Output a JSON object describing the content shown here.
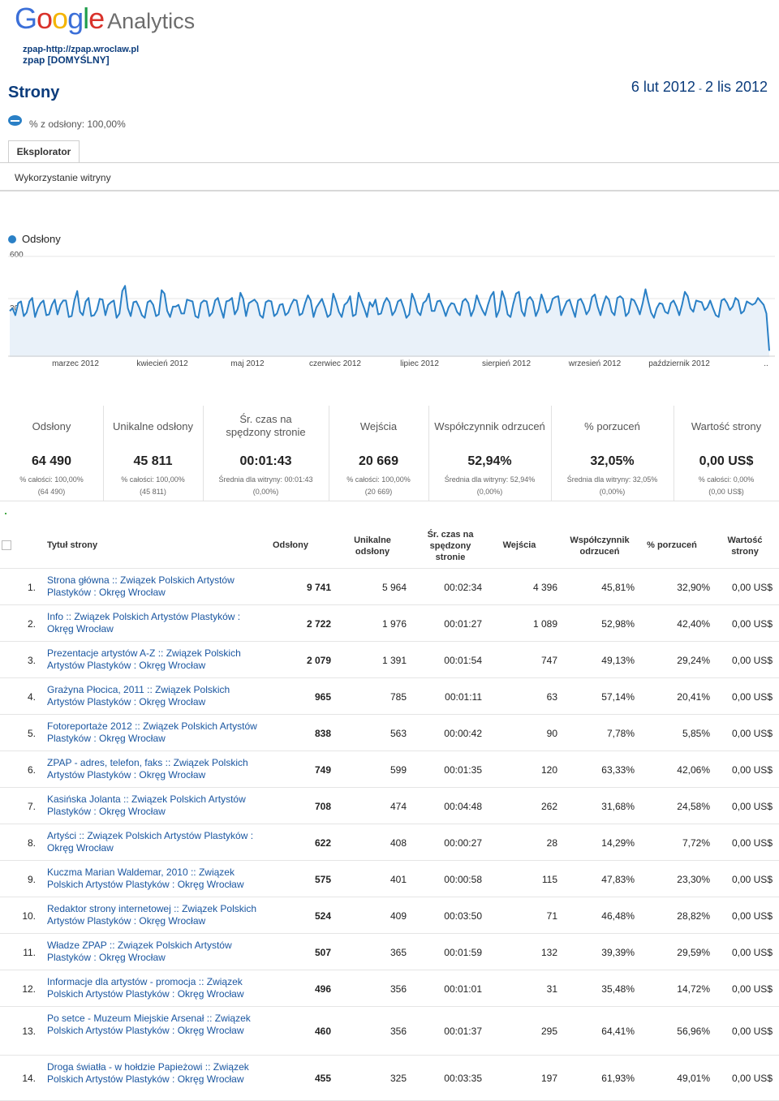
{
  "header": {
    "logo_google": "Google",
    "logo_analytics": "Analytics",
    "account_line1": "zpap-http://zpap.wroclaw.pl",
    "account_line2": "zpap [DOMYŚLNY]",
    "page_title": "Strony",
    "date_start": "6 lut 2012",
    "date_sep": "-",
    "date_end": "2 lis 2012",
    "segment_text": "% z odsłony: 100,00%"
  },
  "tabs": {
    "explorer": "Eksplorator",
    "subtab": "Wykorzystanie witryny"
  },
  "chart_data": {
    "type": "line",
    "series": [
      {
        "name": "Odsłony",
        "color": "#2a80c6",
        "values": [
          285,
          300,
          260,
          330,
          340,
          255,
          275,
          340,
          360,
          250,
          300,
          330,
          345,
          260,
          265,
          320,
          350,
          265,
          320,
          345,
          345,
          250,
          255,
          345,
          400,
          280,
          260,
          340,
          360,
          255,
          260,
          290,
          355,
          350,
          260,
          320,
          335,
          345,
          245,
          270,
          400,
          430,
          300,
          255,
          335,
          340,
          305,
          260,
          245,
          335,
          345,
          320,
          255,
          265,
          405,
          385,
          285,
          250,
          310,
          310,
          320,
          270,
          270,
          350,
          345,
          340,
          255,
          245,
          330,
          345,
          340,
          255,
          275,
          345,
          360,
          300,
          245,
          340,
          345,
          360,
          265,
          295,
          390,
          355,
          255,
          330,
          340,
          350,
          330,
          260,
          245,
          335,
          345,
          340,
          255,
          270,
          320,
          325,
          260,
          275,
          320,
          350,
          345,
          260,
          270,
          330,
          375,
          345,
          250,
          305,
          330,
          355,
          305,
          250,
          265,
          385,
          340,
          280,
          250,
          320,
          335,
          370,
          255,
          265,
          390,
          345,
          300,
          250,
          335,
          310,
          350,
          265,
          270,
          330,
          360,
          335,
          260,
          285,
          340,
          350,
          305,
          245,
          265,
          385,
          345,
          280,
          260,
          330,
          345,
          385,
          285,
          285,
          340,
          345,
          305,
          255,
          305,
          330,
          325,
          280,
          260,
          340,
          355,
          330,
          255,
          295,
          375,
          330,
          290,
          260,
          320,
          370,
          395,
          250,
          290,
          400,
          355,
          265,
          250,
          325,
          385,
          395,
          285,
          255,
          350,
          365,
          340,
          255,
          295,
          380,
          335,
          275,
          295,
          355,
          365,
          370,
          260,
          300,
          340,
          350,
          300,
          250,
          345,
          355,
          320,
          265,
          290,
          365,
          380,
          310,
          260,
          325,
          370,
          350,
          280,
          260,
          360,
          370,
          355,
          255,
          275,
          355,
          345,
          310,
          265,
          330,
          410,
          340,
          275,
          245,
          300,
          330,
          325,
          280,
          270,
          330,
          345,
          310,
          260,
          320,
          395,
          370,
          300,
          280,
          345,
          340,
          335,
          290,
          305,
          345,
          300,
          260,
          250,
          345,
          355,
          330,
          290,
          310,
          360,
          345,
          270,
          285,
          340,
          330,
          320,
          330,
          360,
          340,
          320,
          270,
          55
        ]
      }
    ],
    "ylim": [
      0,
      600
    ],
    "yticks": [
      "600",
      "300"
    ],
    "xlabels": [
      "marzec 2012",
      "kwiecień 2012",
      "maj 2012",
      "czerwiec 2012",
      "lipiec 2012",
      "sierpień 2012",
      "wrzesień 2012",
      "październik 2012",
      ".."
    ]
  },
  "summary": [
    {
      "label": "Odsłony",
      "value": "64 490",
      "sub1": "% całości: 100,00%",
      "sub2": "(64 490)"
    },
    {
      "label": "Unikalne odsłony",
      "value": "45 811",
      "sub1": "% całości: 100,00%",
      "sub2": "(45 811)"
    },
    {
      "label": "Śr. czas na spędzony stronie",
      "value": "00:01:43",
      "sub1": "Średnia dla witryny: 00:01:43",
      "sub2": "(0,00%)"
    },
    {
      "label": "Wejścia",
      "value": "20 669",
      "sub1": "% całości: 100,00%",
      "sub2": "(20 669)"
    },
    {
      "label": "Współczynnik odrzuceń",
      "value": "52,94%",
      "sub1": "Średnia dla witryny: 52,94%",
      "sub2": "(0,00%)"
    },
    {
      "label": "% porzuceń",
      "value": "32,05%",
      "sub1": "Średnia dla witryny: 32,05%",
      "sub2": "(0,00%)"
    },
    {
      "label": "Wartość strony",
      "value": "0,00 US$",
      "sub1": "% całości: 0,00%",
      "sub2": "(0,00 US$)"
    }
  ],
  "table": {
    "headers": {
      "title": "Tytuł strony",
      "pageviews": "Odsłony",
      "unique": "Unikalne odsłony",
      "avg_time": "Śr. czas na spędzony stronie",
      "entrances": "Wejścia",
      "bounce": "Współczynnik odrzuceń",
      "exit": "% porzuceń",
      "value": "Wartość strony"
    },
    "rows": [
      {
        "idx": "1.",
        "title": "Strona główna :: Związek Polskich Artystów Plastyków : Okręg Wrocław",
        "pageviews": "9 741",
        "unique": "5 964",
        "avg_time": "00:02:34",
        "entrances": "4 396",
        "bounce": "45,81%",
        "exit": "32,90%",
        "value": "0,00 US$"
      },
      {
        "idx": "2.",
        "title": "Info :: Związek Polskich Artystów Plastyków : Okręg Wrocław",
        "pageviews": "2 722",
        "unique": "1 976",
        "avg_time": "00:01:27",
        "entrances": "1 089",
        "bounce": "52,98%",
        "exit": "42,40%",
        "value": "0,00 US$"
      },
      {
        "idx": "3.",
        "title": "Prezentacje artystów A-Z :: Związek Polskich Artystów Plastyków : Okręg Wrocław",
        "pageviews": "2 079",
        "unique": "1 391",
        "avg_time": "00:01:54",
        "entrances": "747",
        "bounce": "49,13%",
        "exit": "29,24%",
        "value": "0,00 US$"
      },
      {
        "idx": "4.",
        "title": "Grażyna Płocica, 2011 :: Związek Polskich Artystów Plastyków : Okręg Wrocław",
        "pageviews": "965",
        "unique": "785",
        "avg_time": "00:01:11",
        "entrances": "63",
        "bounce": "57,14%",
        "exit": "20,41%",
        "value": "0,00 US$"
      },
      {
        "idx": "5.",
        "title": "Fotoreportaże 2012 :: Związek Polskich Artystów Plastyków : Okręg Wrocław",
        "pageviews": "838",
        "unique": "563",
        "avg_time": "00:00:42",
        "entrances": "90",
        "bounce": "7,78%",
        "exit": "5,85%",
        "value": "0,00 US$"
      },
      {
        "idx": "6.",
        "title": "ZPAP - adres, telefon, faks :: Związek Polskich Artystów Plastyków : Okręg Wrocław",
        "pageviews": "749",
        "unique": "599",
        "avg_time": "00:01:35",
        "entrances": "120",
        "bounce": "63,33%",
        "exit": "42,06%",
        "value": "0,00 US$"
      },
      {
        "idx": "7.",
        "title": "Kasińska Jolanta :: Związek Polskich Artystów Plastyków : Okręg Wrocław",
        "pageviews": "708",
        "unique": "474",
        "avg_time": "00:04:48",
        "entrances": "262",
        "bounce": "31,68%",
        "exit": "24,58%",
        "value": "0,00 US$"
      },
      {
        "idx": "8.",
        "title": "Artyści :: Związek Polskich Artystów Plastyków : Okręg Wrocław",
        "pageviews": "622",
        "unique": "408",
        "avg_time": "00:00:27",
        "entrances": "28",
        "bounce": "14,29%",
        "exit": "7,72%",
        "value": "0,00 US$"
      },
      {
        "idx": "9.",
        "title": "Kuczma Marian Waldemar, 2010 :: Związek Polskich Artystów Plastyków : Okręg Wrocław",
        "pageviews": "575",
        "unique": "401",
        "avg_time": "00:00:58",
        "entrances": "115",
        "bounce": "47,83%",
        "exit": "23,30%",
        "value": "0,00 US$"
      },
      {
        "idx": "10.",
        "title": "Redaktor strony internetowej :: Związek Polskich Artystów Plastyków : Okręg Wrocław",
        "pageviews": "524",
        "unique": "409",
        "avg_time": "00:03:50",
        "entrances": "71",
        "bounce": "46,48%",
        "exit": "28,82%",
        "value": "0,00 US$"
      },
      {
        "idx": "11.",
        "title": "Władze ZPAP :: Związek Polskich Artystów Plastyków : Okręg Wrocław",
        "pageviews": "507",
        "unique": "365",
        "avg_time": "00:01:59",
        "entrances": "132",
        "bounce": "39,39%",
        "exit": "29,59%",
        "value": "0,00 US$"
      },
      {
        "idx": "12.",
        "title": "Informacje dla artystów - promocja :: Związek Polskich Artystów Plastyków : Okręg Wrocław",
        "pageviews": "496",
        "unique": "356",
        "avg_time": "00:01:01",
        "entrances": "31",
        "bounce": "35,48%",
        "exit": "14,72%",
        "value": "0,00 US$"
      },
      {
        "idx": "13.",
        "title": "Po setce - Muzeum Miejskie Arsenał :: Związek Polskich Artystów Plastyków : Okręg Wrocław",
        "pageviews": "460",
        "unique": "356",
        "avg_time": "00:01:37",
        "entrances": "295",
        "bounce": "64,41%",
        "exit": "56,96%",
        "value": "0,00 US$"
      },
      {
        "idx": "14.",
        "title": "Droga światła - w hołdzie Papieżowi :: Związek Polskich Artystów Plastyków : Okręg Wrocław",
        "pageviews": "455",
        "unique": "325",
        "avg_time": "00:03:35",
        "entrances": "197",
        "bounce": "61,93%",
        "exit": "49,01%",
        "value": "0,00 US$"
      }
    ]
  }
}
